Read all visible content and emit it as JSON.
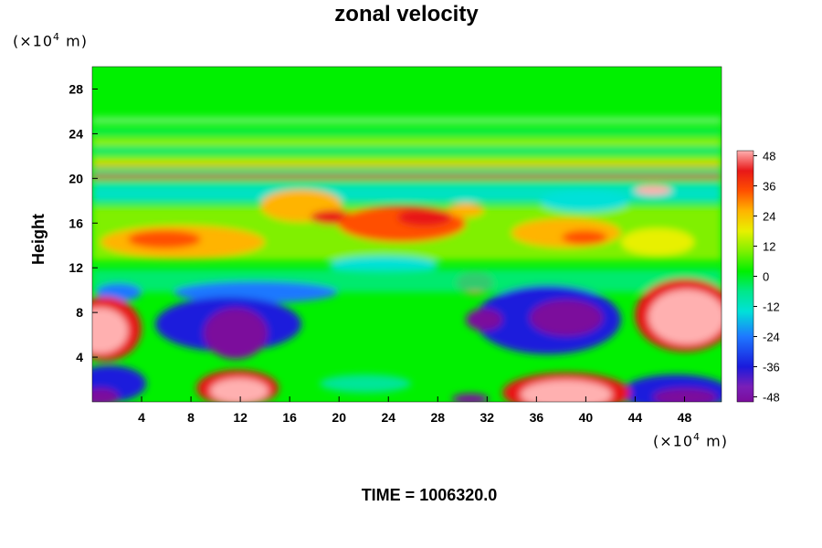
{
  "chart_data": {
    "type": "heatmap",
    "title": "zonal velocity",
    "ylabel": "Height",
    "x_unit_prefix": "(×10",
    "x_unit_exp": "4",
    "x_unit_suffix": " m)",
    "y_unit_prefix": "(×10",
    "y_unit_exp": "4",
    "y_unit_suffix": " m)",
    "xlim": [
      0,
      51
    ],
    "ylim": [
      0,
      30
    ],
    "x_ticks": [
      4,
      8,
      12,
      16,
      20,
      24,
      28,
      32,
      36,
      40,
      44,
      48
    ],
    "y_ticks": [
      4,
      8,
      12,
      16,
      20,
      24,
      28
    ],
    "colorbar": {
      "ticks": [
        48,
        36,
        24,
        12,
        0,
        -12,
        -24,
        -36,
        -48
      ],
      "range": [
        -50,
        50
      ]
    },
    "footer": "TIME = 1006320.0"
  }
}
